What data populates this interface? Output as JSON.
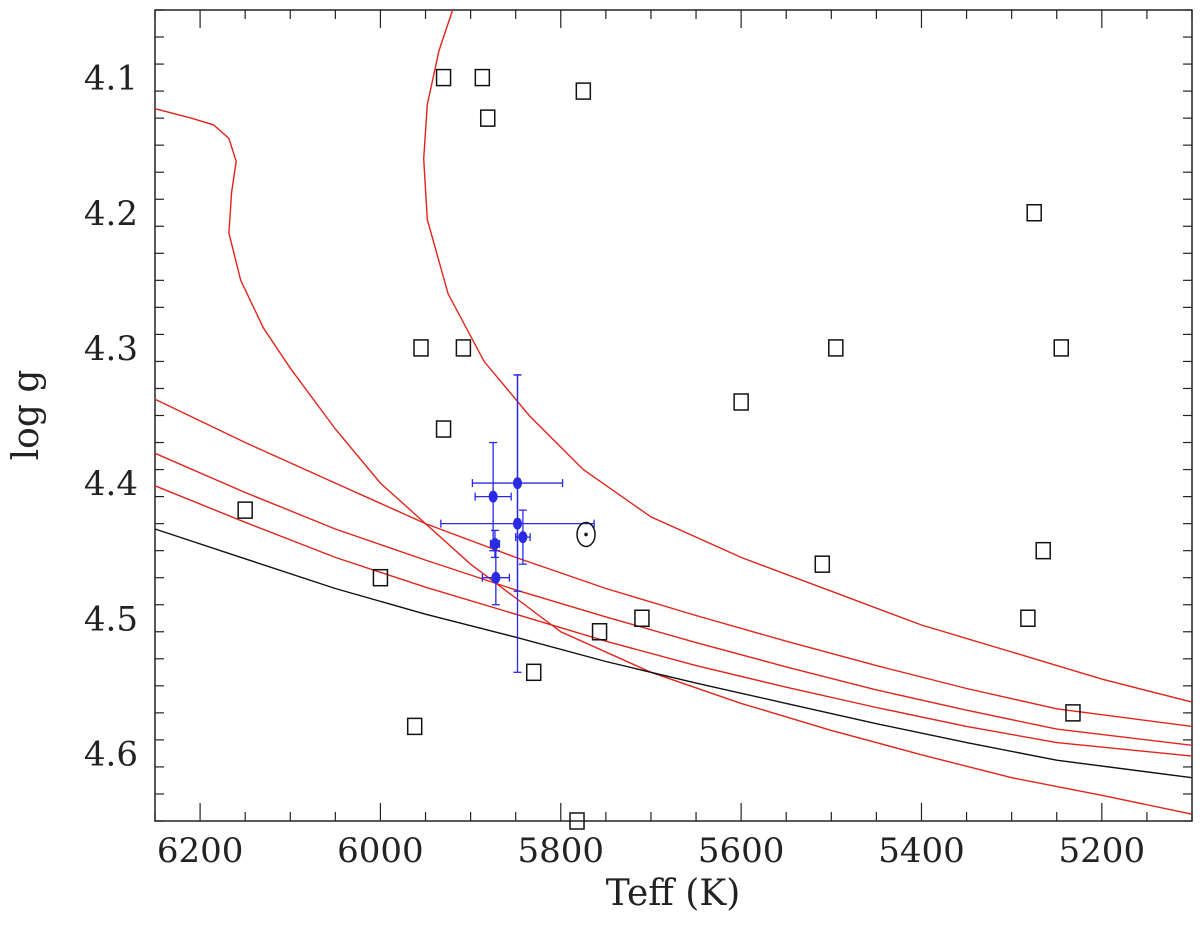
{
  "chart_data": {
    "type": "scatter",
    "title": "",
    "xlabel": "Teff (K)",
    "ylabel": "log g",
    "xlim": [
      6250,
      5100
    ],
    "ylim": [
      4.65,
      4.05
    ],
    "x_ticks": [
      6200,
      6000,
      5800,
      5600,
      5400,
      5200
    ],
    "y_ticks": [
      4.1,
      4.2,
      4.3,
      4.4,
      4.5,
      4.6
    ],
    "grid": false,
    "legend": "none",
    "colors": {
      "isochrone": "#e0241b",
      "zams": "#111111",
      "errorbar": "#2a2ae6",
      "box": "#111111"
    },
    "squares": [
      [
        5930,
        4.1
      ],
      [
        5887,
        4.1
      ],
      [
        5881,
        4.13
      ],
      [
        5775,
        4.11
      ],
      [
        5955,
        4.3
      ],
      [
        5908,
        4.3
      ],
      [
        5930,
        4.36
      ],
      [
        5600,
        4.34
      ],
      [
        5495,
        4.3
      ],
      [
        5275,
        4.2
      ],
      [
        5245,
        4.3
      ],
      [
        6150,
        4.42
      ],
      [
        6000,
        4.47
      ],
      [
        5510,
        4.46
      ],
      [
        5265,
        4.45
      ],
      [
        5757,
        4.51
      ],
      [
        5710,
        4.5
      ],
      [
        5282,
        4.5
      ],
      [
        5232,
        4.57
      ],
      [
        5830,
        4.54
      ],
      [
        5962,
        4.58
      ],
      [
        5782,
        4.65
      ]
    ],
    "stars_with_errors": [
      {
        "x": 5875,
        "y": 4.41,
        "xerr": 20,
        "yerr": 0.04
      },
      {
        "x": 5873,
        "y": 4.445,
        "xerr": 5,
        "yerr": 0.01
      },
      {
        "x": 5872,
        "y": 4.47,
        "xerr": 15,
        "yerr": 0.02
      },
      {
        "x": 5848,
        "y": 4.4,
        "xerr": 50,
        "yerr": 0.08
      },
      {
        "x": 5848,
        "y": 4.43,
        "xerr": 85,
        "yerr": 0.11
      },
      {
        "x": 5842,
        "y": 4.44,
        "xerr": 8,
        "yerr": 0.02
      }
    ],
    "sun": {
      "x": 5772,
      "y": 4.438
    },
    "isochrones": [
      {
        "points": [
          [
            6250,
            4.123
          ],
          [
            6210,
            4.13
          ],
          [
            6185,
            4.135
          ],
          [
            6168,
            4.145
          ],
          [
            6160,
            4.162
          ],
          [
            6165,
            4.185
          ],
          [
            6168,
            4.215
          ],
          [
            6155,
            4.25
          ],
          [
            6130,
            4.285
          ],
          [
            6100,
            4.315
          ],
          [
            6050,
            4.36
          ],
          [
            6000,
            4.4
          ],
          [
            5950,
            4.43
          ],
          [
            5900,
            4.46
          ],
          [
            5850,
            4.485
          ],
          [
            5800,
            4.51
          ],
          [
            5700,
            4.54
          ],
          [
            5600,
            4.563
          ],
          [
            5500,
            4.583
          ],
          [
            5400,
            4.601
          ],
          [
            5300,
            4.618
          ],
          [
            5200,
            4.631
          ],
          [
            5100,
            4.645
          ]
        ]
      },
      {
        "points": [
          [
            5920,
            4.05
          ],
          [
            5935,
            4.08
          ],
          [
            5948,
            4.12
          ],
          [
            5952,
            4.16
          ],
          [
            5948,
            4.205
          ],
          [
            5925,
            4.26
          ],
          [
            5885,
            4.31
          ],
          [
            5835,
            4.35
          ],
          [
            5775,
            4.39
          ],
          [
            5700,
            4.425
          ],
          [
            5600,
            4.455
          ],
          [
            5500,
            4.48
          ],
          [
            5400,
            4.505
          ],
          [
            5300,
            4.525
          ],
          [
            5200,
            4.545
          ],
          [
            5100,
            4.562
          ]
        ]
      },
      {
        "points": [
          [
            6250,
            4.338
          ],
          [
            6150,
            4.37
          ],
          [
            6050,
            4.4
          ],
          [
            5950,
            4.43
          ],
          [
            5850,
            4.455
          ],
          [
            5750,
            4.478
          ],
          [
            5650,
            4.498
          ],
          [
            5550,
            4.517
          ],
          [
            5450,
            4.535
          ],
          [
            5350,
            4.552
          ],
          [
            5250,
            4.567
          ],
          [
            5100,
            4.58
          ]
        ]
      },
      {
        "points": [
          [
            6250,
            4.378
          ],
          [
            6150,
            4.407
          ],
          [
            6050,
            4.434
          ],
          [
            5950,
            4.457
          ],
          [
            5850,
            4.479
          ],
          [
            5750,
            4.499
          ],
          [
            5650,
            4.518
          ],
          [
            5550,
            4.536
          ],
          [
            5450,
            4.553
          ],
          [
            5350,
            4.568
          ],
          [
            5250,
            4.582
          ],
          [
            5100,
            4.594
          ]
        ]
      },
      {
        "points": [
          [
            6250,
            4.402
          ],
          [
            6150,
            4.429
          ],
          [
            6050,
            4.455
          ],
          [
            5950,
            4.477
          ],
          [
            5850,
            4.497
          ],
          [
            5750,
            4.517
          ],
          [
            5650,
            4.535
          ],
          [
            5550,
            4.551
          ],
          [
            5450,
            4.566
          ],
          [
            5350,
            4.58
          ],
          [
            5250,
            4.592
          ],
          [
            5100,
            4.602
          ]
        ]
      }
    ],
    "zams": {
      "points": [
        [
          6250,
          4.434
        ],
        [
          6150,
          4.456
        ],
        [
          6050,
          4.478
        ],
        [
          5950,
          4.497
        ],
        [
          5850,
          4.514
        ],
        [
          5750,
          4.532
        ],
        [
          5650,
          4.548
        ],
        [
          5550,
          4.563
        ],
        [
          5450,
          4.578
        ],
        [
          5350,
          4.592
        ],
        [
          5250,
          4.605
        ],
        [
          5100,
          4.618
        ]
      ]
    }
  }
}
